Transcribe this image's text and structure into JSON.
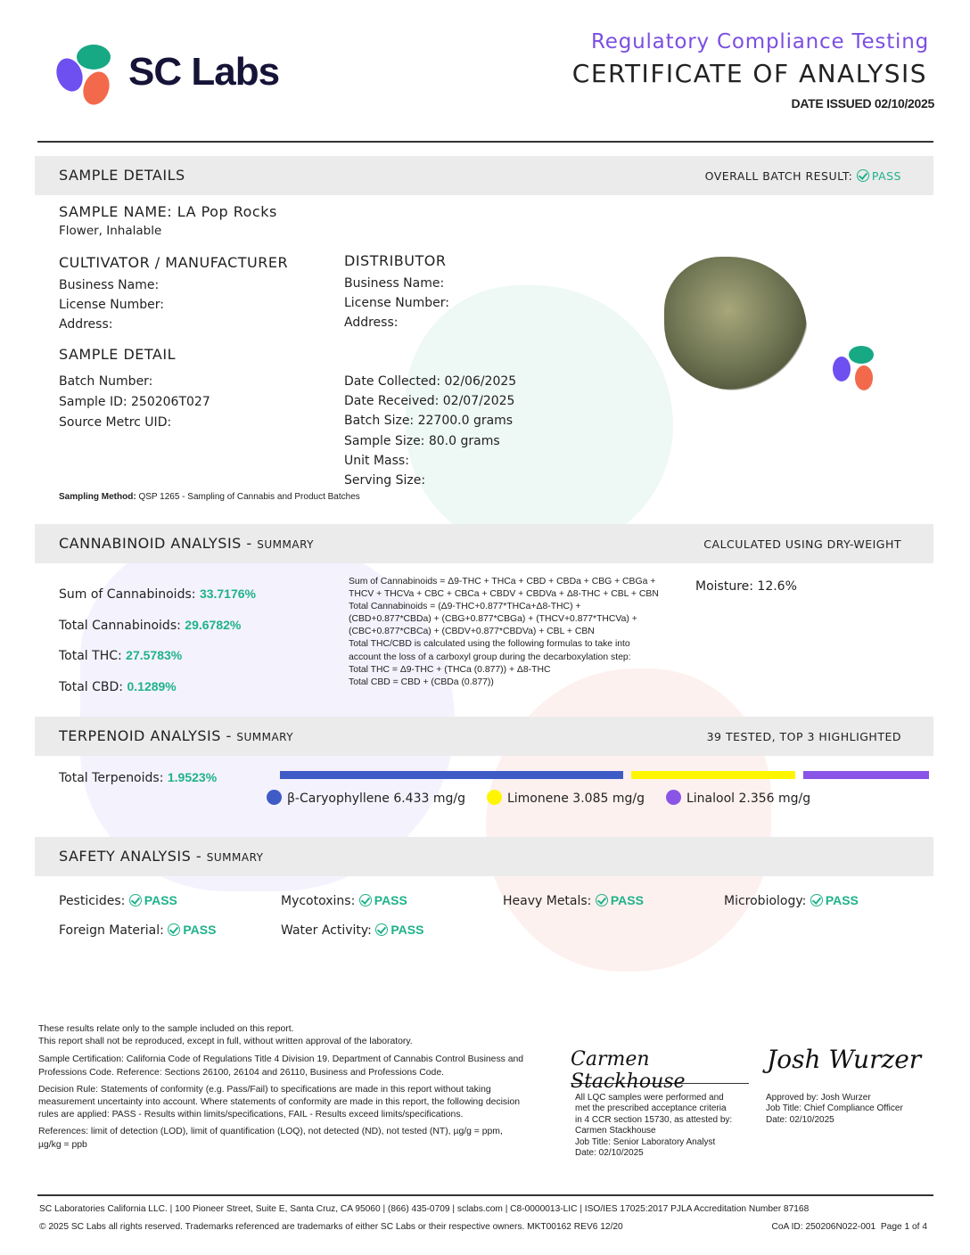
{
  "header": {
    "brand": "SC Labs",
    "subtitle": "Regulatory Compliance Testing",
    "title": "CERTIFICATE OF ANALYSIS",
    "date_issued": "DATE ISSUED 02/10/2025"
  },
  "colors": {
    "accent": "#7b4fe0",
    "pass": "#1fb28a",
    "logo_purple": "#6e4ff0",
    "logo_green": "#17a884",
    "logo_orange": "#f26a4b"
  },
  "sample": {
    "section": "SAMPLE DETAILS",
    "overall_label": "OVERALL BATCH RESULT:",
    "overall_value": "PASS",
    "name_label": "SAMPLE NAME:",
    "name": "LA Pop Rocks",
    "type": "Flower, Inhalable",
    "cultivator": {
      "heading": "CULTIVATOR / MANUFACTURER",
      "business": "Business Name:",
      "license": "License Number:",
      "address": "Address:"
    },
    "distributor": {
      "heading": "DISTRIBUTOR",
      "business": "Business Name:",
      "license": "License Number:",
      "address": "Address:"
    },
    "detail_heading": "SAMPLE DETAIL",
    "batch": "Batch Number:",
    "sample_id": "Sample ID: 250206T027",
    "metrc": "Source Metrc UID:",
    "collected": "Date Collected: 02/06/2025",
    "received": "Date Received: 02/07/2025",
    "batch_size": "Batch Size: 22700.0 grams",
    "sample_size": "Sample Size: 80.0 grams",
    "unit_mass": "Unit Mass:",
    "serving": "Serving Size:",
    "method_label": "Sampling Method:",
    "method": "QSP 1265 - Sampling of Cannabis and Product Batches"
  },
  "cannabinoid": {
    "title": "CANNABINOID ANALYSIS - ",
    "sub": "SUMMARY",
    "right": "CALCULATED USING DRY-WEIGHT",
    "rows": [
      {
        "label": "Sum of Cannabinoids:",
        "value": "33.7176%"
      },
      {
        "label": "Total Cannabinoids:",
        "value": "29.6782%"
      },
      {
        "label": "Total THC:",
        "value": "27.5783%"
      },
      {
        "label": "Total CBD:",
        "value": "0.1289%"
      }
    ],
    "notes": [
      "Sum of Cannabinoids = Δ9-THC + THCa + CBD + CBDa + CBG + CBGa +",
      "THCV + THCVa + CBC + CBCa + CBDV + CBDVa + Δ8-THC + CBL + CBN",
      "Total Cannabinoids = (Δ9-THC+0.877*THCa+Δ8-THC) +",
      "(CBD+0.877*CBDa) + (CBG+0.877*CBGa) + (THCV+0.877*THCVa) +",
      "(CBC+0.877*CBCa) + (CBDV+0.877*CBDVa) + CBL + CBN",
      "Total THC/CBD is calculated using the following formulas to take into",
      "account the loss of a carboxyl group during the decarboxylation step:",
      "Total THC = Δ9-THC + (THCa (0.877)) + Δ8-THC",
      "Total CBD = CBD + (CBDa (0.877))"
    ],
    "moisture": "Moisture: 12.6%"
  },
  "terpenoid": {
    "title": "TERPENOID ANALYSIS - ",
    "sub": "SUMMARY",
    "right": "39 TESTED, TOP 3 HIGHLIGHTED",
    "total_label": "Total Terpenoids:",
    "total": "1.9523%",
    "items": [
      {
        "name": "β-Caryophyllene 6.433 mg/g",
        "value": 6.433,
        "color": "#3f5bc6"
      },
      {
        "name": "Limonene 3.085 mg/g",
        "value": 3.085,
        "color": "#fff500"
      },
      {
        "name": "Linalool 2.356 mg/g",
        "value": 2.356,
        "color": "#8a55e6"
      }
    ]
  },
  "safety": {
    "title": "SAFETY ANALYSIS - ",
    "sub": "SUMMARY",
    "items": [
      {
        "label": "Pesticides:",
        "value": "PASS"
      },
      {
        "label": "Mycotoxins:",
        "value": "PASS"
      },
      {
        "label": "Heavy Metals:",
        "value": "PASS"
      },
      {
        "label": "Microbiology:",
        "value": "PASS"
      },
      {
        "label": "Foreign Material:",
        "value": "PASS"
      },
      {
        "label": "Water Activity:",
        "value": "PASS"
      }
    ]
  },
  "footer_notes": {
    "l1": "These results relate only to the sample included on this report.",
    "l2": "This report shall not be reproduced, except in full, without written approval of the laboratory.",
    "cert_label": "Sample Certification:",
    "cert": "California Code of Regulations Title 4 Division 19. Department of Cannabis Control Business and Professions Code. Reference: Sections 26100, 26104 and 26110, Business and Professions Code.",
    "rule_label": "Decision Rule:",
    "rule": "Statements of conformity (e.g. Pass/Fail) to specifications are made in this report without taking measurement uncertainty into account. Where statements of conformity are made in this report, the following decision rules are applied: PASS - Results within limits/specifications, FAIL - Results exceed limits/specifications.",
    "ref_label": "References:",
    "ref": "limit of detection (LOD), limit of quantification (LOQ), not detected (ND), not tested (NT), µg/g = ppm, µg/kg = ppb"
  },
  "signatures": {
    "analyst": [
      "All LQC samples were performed and",
      "met the prescribed acceptance criteria",
      "in 4 CCR section 15730, as attested by:",
      "Carmen Stackhouse",
      "Job Title: Senior Laboratory Analyst",
      "Date: 02/10/2025"
    ],
    "analyst_sig": "Carmen Stackhouse",
    "approver": [
      "Approved by: Josh Wurzer",
      "Job Title: Chief Compliance Officer",
      "Date: 02/10/2025"
    ],
    "approver_sig": "Josh Wurzer"
  },
  "footer": {
    "line1": "SC Laboratories California LLC. | 100 Pioneer Street, Suite E, Santa Cruz, CA 95060 | (866) 435-0709 | sclabs.com | C8-0000013-LIC | ISO/IES 17025:2017 PJLA Accreditation Number 87168",
    "line2": "© 2025 SC Labs all rights reserved. Trademarks referenced are trademarks of either SC Labs or their respective owners. MKT00162 REV6 12/20",
    "coa": "CoA ID: 250206N022-001",
    "page": "Page 1 of 4"
  }
}
